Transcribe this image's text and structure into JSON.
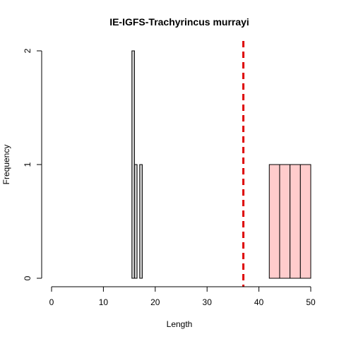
{
  "chart_data": {
    "type": "bar",
    "title": "IE-IGFS-Trachyrincus murrayi",
    "xlabel": "Length",
    "ylabel": "Frequency",
    "xlim": [
      0,
      50
    ],
    "ylim": [
      0,
      2
    ],
    "x_ticks": [
      0,
      10,
      20,
      30,
      40,
      50
    ],
    "y_ticks": [
      0,
      1,
      2
    ],
    "grid": false,
    "legend": "none",
    "series": [
      {
        "fill": "#cccccc",
        "bins": [
          {
            "x0": 15.5,
            "x1": 16.0,
            "value": 2
          },
          {
            "x0": 16.0,
            "x1": 16.5,
            "value": 1
          },
          {
            "x0": 16.5,
            "x1": 17.0,
            "value": 0
          },
          {
            "x0": 17.0,
            "x1": 17.5,
            "value": 1
          }
        ]
      },
      {
        "fill": "#ffcccc",
        "bins": [
          {
            "x0": 42,
            "x1": 44,
            "value": 1
          },
          {
            "x0": 44,
            "x1": 46,
            "value": 1
          },
          {
            "x0": 46,
            "x1": 48,
            "value": 1
          },
          {
            "x0": 48,
            "x1": 50,
            "value": 1
          }
        ]
      }
    ],
    "reference_lines": [
      {
        "x": 37,
        "color": "#dd0000",
        "style": "dashed"
      }
    ]
  }
}
